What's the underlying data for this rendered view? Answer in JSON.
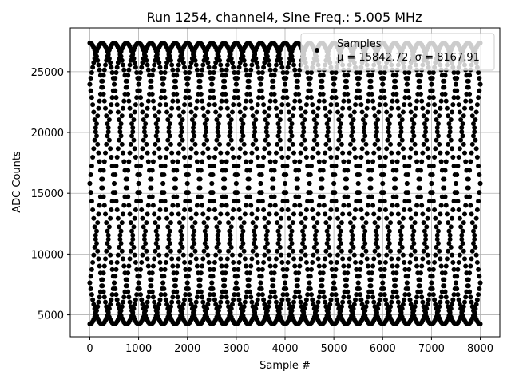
{
  "chart_data": {
    "type": "scatter",
    "title": "Run 1254, channel4, Sine Freq.: 5.005 MHz",
    "xlabel": "Sample #",
    "ylabel": "ADC Counts",
    "xlim": [
      -400,
      8400
    ],
    "ylim": [
      3200,
      28600
    ],
    "xticks": [
      0,
      1000,
      2000,
      3000,
      4000,
      5000,
      6000,
      7000,
      8000
    ],
    "yticks": [
      5000,
      10000,
      15000,
      20000,
      25000
    ],
    "grid": true,
    "legend": {
      "placement": "top-right",
      "entries": [
        {
          "label": "Samples",
          "stats": "μ = 15842.72, σ = 8167.91"
        }
      ]
    },
    "series": [
      {
        "name": "Samples",
        "color": "#000000",
        "marker": "circle",
        "model": "sine",
        "offset": 15800,
        "amplitude": 11550,
        "period_samples": 2000,
        "phases_deg": [
          90,
          45,
          0,
          -45,
          -90,
          -135,
          180,
          135
        ],
        "x_range": [
          0,
          8000
        ]
      }
    ]
  }
}
